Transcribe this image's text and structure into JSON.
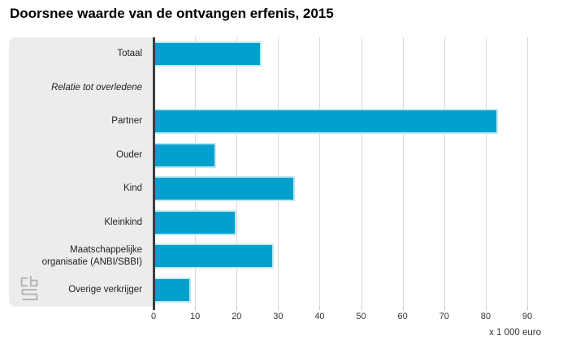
{
  "title": "Doorsnee waarde van de ontvangen erfenis, 2015",
  "chart_data": {
    "type": "bar",
    "orientation": "horizontal",
    "title": "Doorsnee waarde van de ontvangen erfenis, 2015",
    "xlabel": "x 1 000 euro",
    "ylabel": "",
    "xlim": [
      0,
      90
    ],
    "xticks": [
      0,
      10,
      20,
      30,
      40,
      50,
      60,
      70,
      80,
      90
    ],
    "grid": true,
    "legend_position": "none",
    "rows": [
      {
        "label": "Totaal",
        "value": 26,
        "header": false
      },
      {
        "label": "Relatie tot overledene",
        "value": null,
        "header": true
      },
      {
        "label": "Partner",
        "value": 83,
        "header": false
      },
      {
        "label": "Ouder",
        "value": 15,
        "header": false
      },
      {
        "label": "Kind",
        "value": 34,
        "header": false
      },
      {
        "label": "Kleinkind",
        "value": 20,
        "header": false
      },
      {
        "label": "Maatschappelijke organisatie (ANBI/SBBI)",
        "value": 29,
        "header": false
      },
      {
        "label": "Overige verkrijger",
        "value": 9,
        "header": false
      }
    ]
  },
  "colors": {
    "bar": "#00a1cd",
    "bar_edge": "#bde9f4",
    "panel_bg": "#ececec",
    "gridline": "#d9d9d9",
    "axis_line": "#3d3d3d",
    "tick_text": "#333333",
    "title_text": "#000000"
  },
  "logo": {
    "alt": "CBS"
  }
}
